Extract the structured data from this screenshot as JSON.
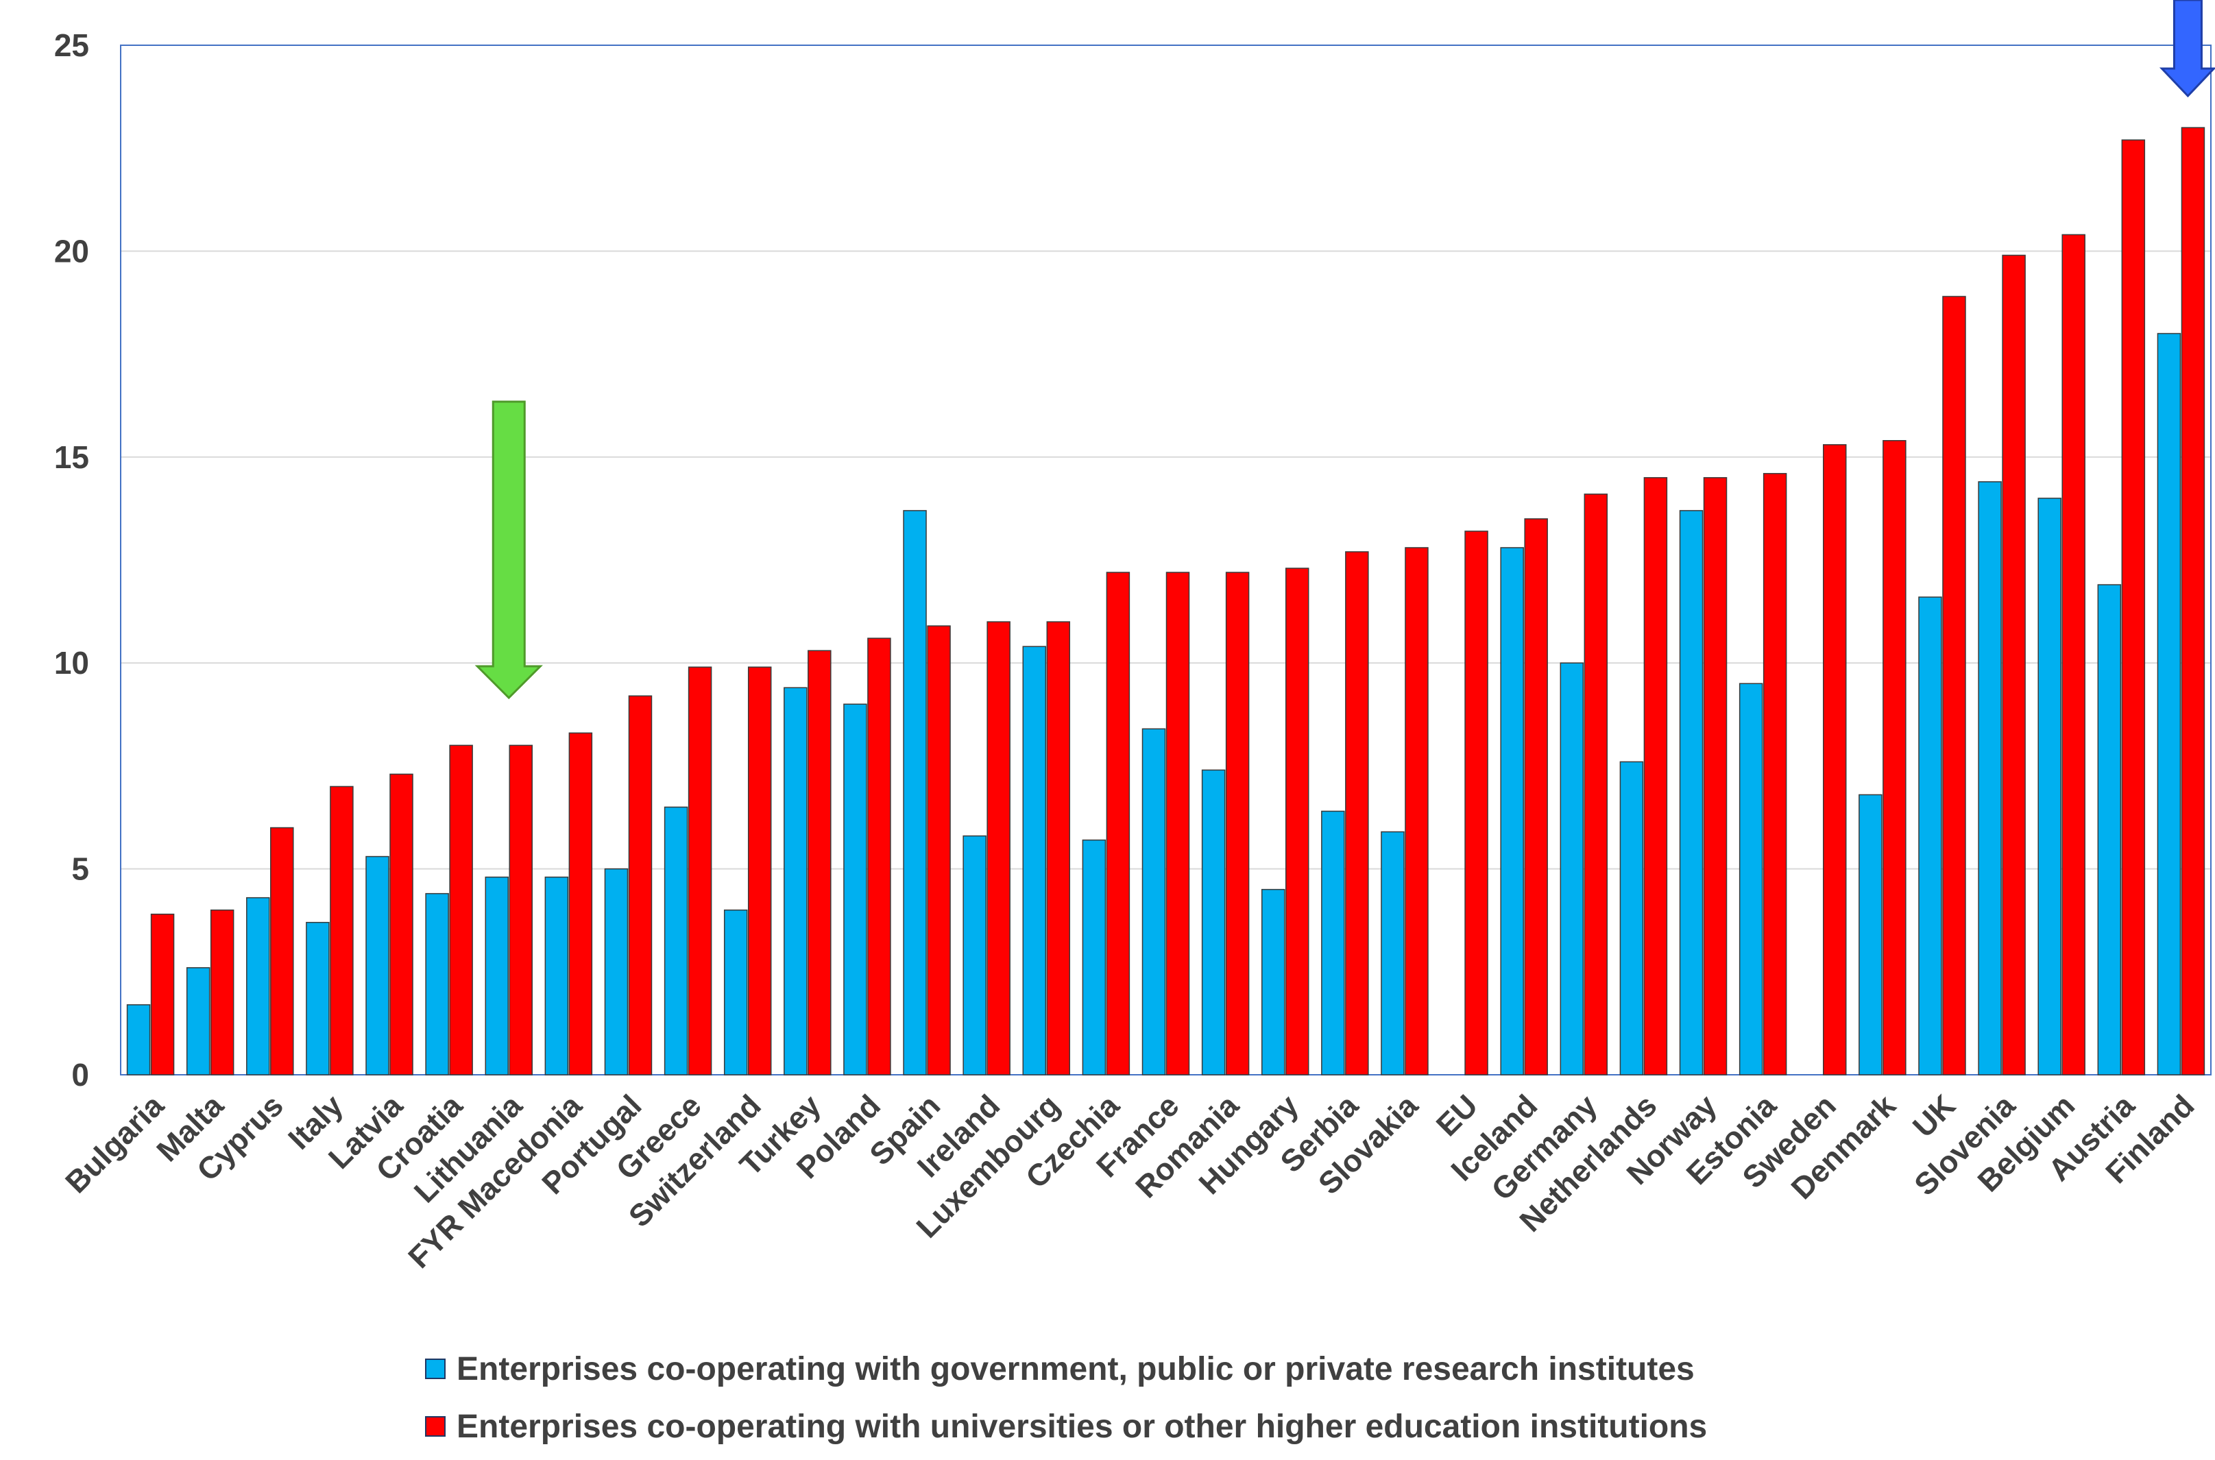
{
  "chart_data": {
    "type": "bar",
    "title": "",
    "xlabel": "",
    "ylabel": "",
    "ylim": [
      0,
      25
    ],
    "yticks": [
      "0",
      "5",
      "10",
      "15",
      "20",
      "25"
    ],
    "grid": true,
    "legend_position": "bottom",
    "categories": [
      "Bulgaria",
      "Malta",
      "Cyprus",
      "Italy",
      "Latvia",
      "Croatia",
      "Lithuania",
      "FYR Macedonia",
      "Portugal",
      "Greece",
      "Switzerland",
      "Turkey",
      "Poland",
      "Spain",
      "Ireland",
      "Luxembourg",
      "Czechia",
      "France",
      "Romania",
      "Hungary",
      "Serbia",
      "Slovakia",
      "EU",
      "Iceland",
      "Germany",
      "Netherlands",
      "Norway",
      "Estonia",
      "Sweden",
      "Denmark",
      "UK",
      "Slovenia",
      "Belgium",
      "Austria",
      "Finland"
    ],
    "series": [
      {
        "name": "Enterprises co-operating with government, public or private research institutes",
        "color": "#00b0f0",
        "values": [
          1.7,
          2.6,
          4.3,
          3.7,
          5.3,
          4.4,
          4.8,
          4.8,
          5.0,
          6.5,
          4.0,
          9.4,
          9.0,
          13.7,
          5.8,
          10.4,
          5.7,
          8.4,
          7.4,
          4.5,
          6.4,
          5.9,
          null,
          12.8,
          10.0,
          7.6,
          13.7,
          9.5,
          null,
          6.8,
          11.6,
          14.4,
          14.0,
          11.9,
          18.0
        ]
      },
      {
        "name": "Enterprises co-operating with universities or other higher education institutions",
        "color": "#ff0000",
        "values": [
          3.9,
          4.0,
          6.0,
          7.0,
          7.3,
          8.0,
          8.0,
          8.3,
          9.2,
          9.9,
          9.9,
          10.3,
          10.6,
          10.9,
          11.0,
          11.0,
          12.2,
          12.2,
          12.2,
          12.3,
          12.7,
          12.8,
          13.2,
          13.5,
          14.1,
          14.5,
          14.5,
          14.6,
          15.3,
          15.4,
          18.9,
          19.9,
          20.4,
          22.7,
          23.0
        ]
      }
    ],
    "annotations": [
      {
        "type": "arrow",
        "color": "#66dd44",
        "points_to": "Lithuania"
      },
      {
        "type": "arrow",
        "color": "#3366ff",
        "points_to": "Finland"
      }
    ]
  }
}
